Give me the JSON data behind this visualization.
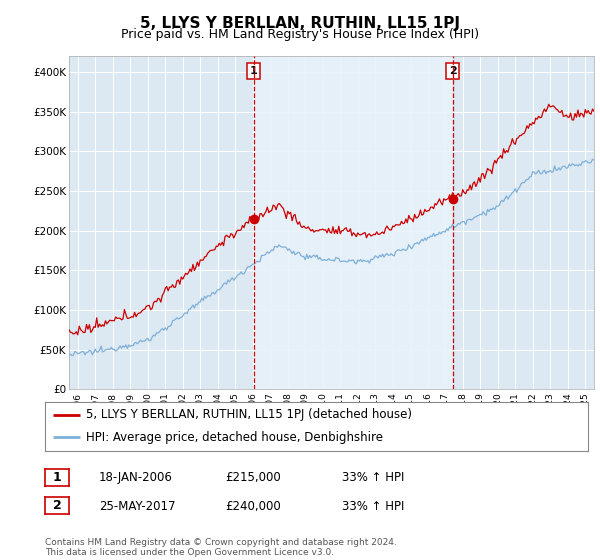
{
  "title": "5, LLYS Y BERLLAN, RUTHIN, LL15 1PJ",
  "subtitle": "Price paid vs. HM Land Registry's House Price Index (HPI)",
  "ylabel_ticks": [
    "£0",
    "£50K",
    "£100K",
    "£150K",
    "£200K",
    "£250K",
    "£300K",
    "£350K",
    "£400K"
  ],
  "ytick_values": [
    0,
    50000,
    100000,
    150000,
    200000,
    250000,
    300000,
    350000,
    400000
  ],
  "ylim": [
    0,
    420000
  ],
  "xlim_start": 1995.5,
  "xlim_end": 2025.5,
  "vline1_x": 2006.05,
  "vline2_x": 2017.42,
  "vline_color": "#cc0000",
  "sale1_date": "18-JAN-2006",
  "sale1_price": "£215,000",
  "sale1_hpi": "33% ↑ HPI",
  "sale2_date": "25-MAY-2017",
  "sale2_price": "£240,000",
  "sale2_hpi": "33% ↑ HPI",
  "legend_line1": "5, LLYS Y BERLLAN, RUTHIN, LL15 1PJ (detached house)",
  "legend_line2": "HPI: Average price, detached house, Denbighshire",
  "footer": "Contains HM Land Registry data © Crown copyright and database right 2024.\nThis data is licensed under the Open Government Licence v3.0.",
  "house_color": "#cc0000",
  "hpi_color": "#7fb0d8",
  "plot_bg": "#dce8f2",
  "shade_color": "#e8f2fa",
  "grid_color": "#ffffff",
  "title_fontsize": 11,
  "subtitle_fontsize": 9,
  "tick_fontsize": 7.5,
  "legend_fontsize": 8.5
}
